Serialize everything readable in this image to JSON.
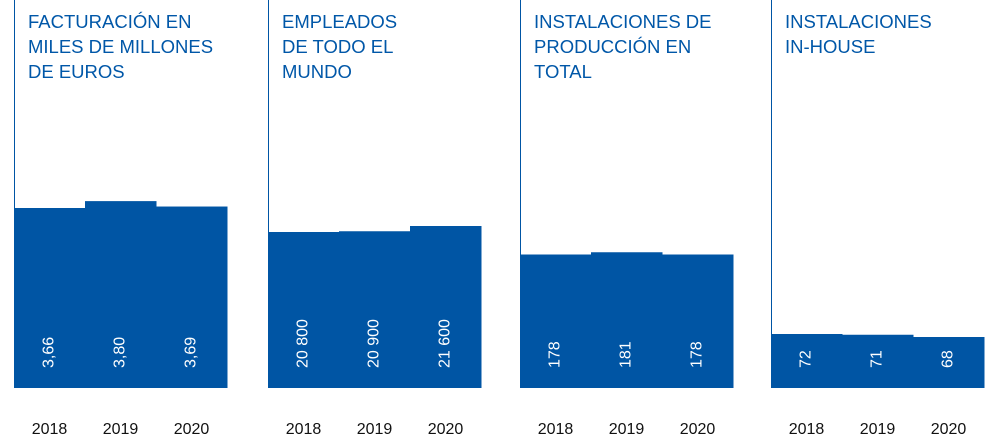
{
  "chart_data": [
    {
      "type": "bar",
      "title": [
        "FACTURACIÓN EN",
        "MILES DE MILLONES",
        "DE EUROS"
      ],
      "categories": [
        "2018",
        "2019",
        "2020"
      ],
      "values": [
        3.66,
        3.8,
        3.69
      ],
      "value_labels": [
        "3,66",
        "3,80",
        "3,69"
      ],
      "color": "#0055a4",
      "ylim": [
        0,
        6.1
      ]
    },
    {
      "type": "bar",
      "title": [
        "EMPLEADOS",
        "DE TODO EL",
        "MUNDO"
      ],
      "categories": [
        "2018",
        "2019",
        "2020"
      ],
      "values": [
        20800,
        20900,
        21600
      ],
      "value_labels": [
        "20 800",
        "20 900",
        "21 600"
      ],
      "color": "#0055a4",
      "ylim": [
        0,
        40000
      ]
    },
    {
      "type": "bar",
      "title": [
        "INSTALACIONES DE",
        "PRODUCCIÓN EN",
        "TOTAL"
      ],
      "categories": [
        "2018",
        "2019",
        "2020"
      ],
      "values": [
        178,
        181,
        178
      ],
      "color": "#0055a4",
      "ylim": [
        0,
        400
      ]
    },
    {
      "type": "bar",
      "title": [
        "INSTALACIONES",
        "IN-HOUSE"
      ],
      "categories": [
        "2018",
        "2019",
        "2020"
      ],
      "values": [
        72,
        71,
        68
      ],
      "color": "#0055a4",
      "ylim": [
        0,
        400
      ]
    }
  ]
}
